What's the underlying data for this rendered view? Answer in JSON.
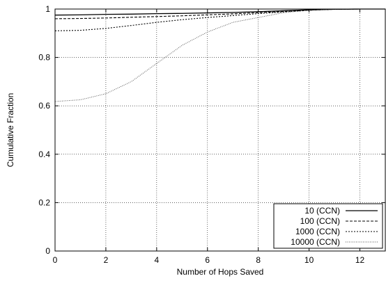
{
  "chart_data": {
    "type": "line",
    "title": "",
    "xlabel": "Number of Hops Saved",
    "ylabel": "Cumulative Fraction",
    "xlim": [
      0,
      13
    ],
    "ylim": [
      0,
      1
    ],
    "x_ticks": [
      0,
      2,
      4,
      6,
      8,
      10,
      12
    ],
    "y_ticks": [
      0,
      0.2,
      0.4,
      0.6,
      0.8,
      1
    ],
    "y_tick_labels": [
      "0",
      "0.2",
      "0.4",
      "0.6",
      "0.8",
      "1"
    ],
    "grid": true,
    "legend_position": "bottom-right",
    "series": [
      {
        "name": "10 (CCN)",
        "style": "solid",
        "x": [
          0,
          1,
          2,
          3,
          4,
          5,
          6,
          7,
          8,
          9,
          10,
          11,
          12,
          13
        ],
        "y": [
          0.975,
          0.976,
          0.978,
          0.979,
          0.981,
          0.982,
          0.984,
          0.986,
          0.989,
          0.993,
          0.997,
          0.999,
          1.0,
          1.0
        ]
      },
      {
        "name": "100 (CCN)",
        "style": "dashed",
        "x": [
          0,
          1,
          2,
          3,
          4,
          5,
          6,
          7,
          8,
          9,
          10,
          11,
          12,
          13
        ],
        "y": [
          0.96,
          0.961,
          0.963,
          0.966,
          0.969,
          0.972,
          0.976,
          0.98,
          0.985,
          0.99,
          0.995,
          0.999,
          1.0,
          1.0
        ]
      },
      {
        "name": "1000 (CCN)",
        "style": "dotted",
        "x": [
          0,
          1,
          2,
          3,
          4,
          5,
          6,
          7,
          8,
          9,
          10,
          11,
          12,
          13
        ],
        "y": [
          0.91,
          0.912,
          0.92,
          0.932,
          0.945,
          0.956,
          0.965,
          0.973,
          0.981,
          0.988,
          0.995,
          0.999,
          1.0,
          1.0
        ]
      },
      {
        "name": "10000 (CCN)",
        "style": "fine-dotted",
        "x": [
          0,
          1,
          2,
          3,
          4,
          5,
          6,
          7,
          8,
          9,
          10,
          11,
          12,
          13
        ],
        "y": [
          0.618,
          0.625,
          0.65,
          0.7,
          0.775,
          0.85,
          0.905,
          0.945,
          0.965,
          0.985,
          0.995,
          0.999,
          1.0,
          1.0
        ]
      }
    ]
  }
}
